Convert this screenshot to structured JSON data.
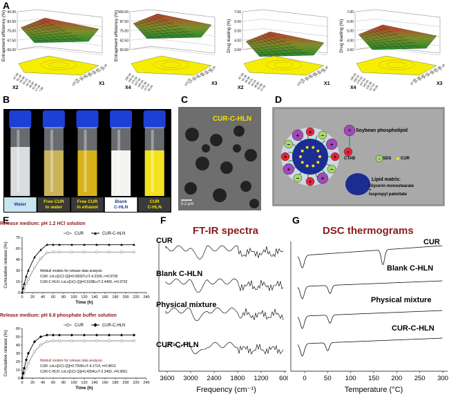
{
  "panels": {
    "A": {
      "letter": "A",
      "plots": [
        {
          "zlabel": "Entrapment efficiency (%)",
          "xlabel": "X1",
          "ylabel": "X2",
          "z_ticks": [
            "60.00",
            "67.50",
            "75.00",
            "82.50",
            "90.00"
          ],
          "x_ticks": [
            "129.76",
            "111.13",
            "93.50",
            "75.88",
            "58.25",
            "40.63",
            "32.14",
            "26.26"
          ],
          "y_ticks": [
            "67.06",
            "61.38",
            "55.69",
            "50.01",
            "44.33",
            "38.64",
            "32.96",
            "27.28",
            "21.60"
          ]
        },
        {
          "zlabel": "Entrapment efficiency (%)",
          "xlabel": "X3",
          "ylabel": "X4",
          "z_ticks": [
            "50.00",
            "62.50",
            "75.00",
            "87.50",
            "100.00"
          ],
          "x_ticks": [
            "129.76",
            "111.13",
            "93.50",
            "75.88",
            "58.25",
            "40.63",
            "26.26"
          ],
          "y_ticks": [
            "195.00",
            "182.51",
            "170.02",
            "157.54",
            "145.05",
            "132.56",
            "117.97",
            "105.00"
          ]
        },
        {
          "zlabel": "Drug loading (%)",
          "xlabel": "X1",
          "ylabel": "X2",
          "z_ticks": [
            "3.00",
            "4.00",
            "5.00",
            "6.00",
            "7.00"
          ],
          "x_ticks": [
            "129.76",
            "111.13",
            "93.50",
            "75.88",
            "58.25",
            "40.63",
            "26.26"
          ],
          "y_ticks": [
            "67.06",
            "61.38",
            "55.69",
            "50.01",
            "44.33",
            "38.64",
            "32.96",
            "27.28"
          ]
        },
        {
          "zlabel": "Drug loading (%)",
          "xlabel": "X3",
          "ylabel": "X4",
          "z_ticks": [
            "3.00",
            "4.00",
            "5.00",
            "6.00",
            "7.00"
          ],
          "x_ticks": [
            "67.06",
            "61.38",
            "55.69",
            "50.01",
            "44.33",
            "38.64",
            "32.96",
            "27.28"
          ],
          "y_ticks": [
            "195.00",
            "182.51",
            "170.02",
            "157.54",
            "145.05",
            "132.56",
            "117.97",
            "105.00"
          ]
        }
      ]
    },
    "B": {
      "letter": "B",
      "vials": [
        {
          "label": "Water",
          "liquid": "#d9dde0"
        },
        {
          "label": "Free CUR in water",
          "liquid": "#c9b35a"
        },
        {
          "label": "Free CUR in ethanol",
          "liquid": "#d9b21a"
        },
        {
          "label": "Blank C-HLN",
          "liquid": "#f4f4f2"
        },
        {
          "label": "CUR C-HLN",
          "liquid": "#f2e21e"
        }
      ]
    },
    "C": {
      "letter": "C",
      "title": "CUR-C-HLN",
      "scale": "0.2 μm"
    },
    "D": {
      "letter": "D",
      "legend": {
        "soybean": "Soybean phospholipid",
        "ctab": "CTAB",
        "sds": "SDS",
        "cur": "CUR",
        "matrix_title": "Lipid matrix:",
        "matrix_1": "Glycerin monostearate",
        "matrix_plus": "+",
        "matrix_2": "Isopropyl palmitate"
      }
    },
    "E": {
      "letter": "E",
      "top": {
        "title": "Release medium: pH 1.2 HCl solution",
        "legend_cur": "CUR",
        "legend_hln": "CUR-C-HLN",
        "ylabel": "Cumulative release (%)",
        "xlabel": "Time (h)",
        "model_title": "Weibull models for release data analysis:",
        "model_cur": "CUR: LnLn[1/(1-Q)]=0.08337LnT-4.2330, r=0.9739",
        "model_hln": "CUR-C-HLN: LnLn[1/(1-Q)]=0.5188LnT-2.4499, r=0.9732"
      },
      "bottom": {
        "title": "Release medium: pH 6.8 phosphate buffer solution",
        "legend_cur": "CUR",
        "legend_hln": "CUR-C-HLN",
        "ylabel": "Cumulative release (%)",
        "xlabel": "Time (h)",
        "model_title": "Weibull models for release data analysis:",
        "model_cur": "CUR: LnLn[1/(1-Q)]=0.7509LnT-4.1714, r=0.9813",
        "model_hln": "CUR-C-HLN: LnLn[1/(1-Q)]=0.4354LnT-2.3492, r=0.9661"
      }
    },
    "F": {
      "letter": "F",
      "title": "FT-IR spectra",
      "labels": [
        "CUR",
        "Blank C-HLN",
        "Physical mixture",
        "CUR-C-HLN"
      ],
      "xlabel": "Frequency (cm⁻¹)",
      "x_ticks": [
        "3600",
        "3000",
        "2400",
        "1800",
        "1200",
        "600"
      ]
    },
    "G": {
      "letter": "G",
      "title": "DSC thermograms",
      "labels": [
        "CUR",
        "Blank C-HLN",
        "Physical mixture",
        "CUR-C-HLN"
      ],
      "xlabel": "Temperature (°C)",
      "x_ticks": [
        "0",
        "50",
        "100",
        "150",
        "200",
        "250",
        "300"
      ]
    }
  },
  "chart_data": [
    {
      "type": "line",
      "title": "Release medium: pH 1.2 HCl solution",
      "xlabel": "Time (h)",
      "ylabel": "Cumulative release (%)",
      "xlim": [
        0,
        240
      ],
      "ylim": [
        0,
        75
      ],
      "x_ticks": [
        0,
        20,
        40,
        60,
        80,
        100,
        120,
        140,
        160,
        180,
        200,
        220,
        240
      ],
      "y_ticks": [
        0,
        15,
        30,
        45,
        60,
        75
      ],
      "series": [
        {
          "name": "CUR",
          "x": [
            0,
            2,
            4,
            8,
            12,
            24,
            36,
            48,
            60,
            72,
            96,
            120,
            144,
            168,
            192,
            216
          ],
          "y": [
            0,
            3,
            6,
            12,
            18,
            34,
            46,
            54,
            55,
            55,
            55,
            55,
            55,
            55,
            55,
            55
          ]
        },
        {
          "name": "CUR-C-HLN",
          "x": [
            0,
            2,
            4,
            8,
            12,
            24,
            36,
            48,
            60,
            72,
            96,
            120,
            144,
            168,
            192,
            216
          ],
          "y": [
            0,
            6,
            12,
            22,
            30,
            48,
            58,
            65,
            65,
            65,
            65,
            65,
            65,
            65,
            65,
            65
          ]
        }
      ]
    },
    {
      "type": "line",
      "title": "Release medium: pH 6.8 phosphate buffer solution",
      "xlabel": "Time (h)",
      "ylabel": "Cumulative release (%)",
      "xlim": [
        0,
        240
      ],
      "ylim": [
        0,
        60
      ],
      "x_ticks": [
        0,
        20,
        40,
        60,
        80,
        100,
        120,
        140,
        160,
        180,
        200,
        220,
        240
      ],
      "y_ticks": [
        0,
        10,
        20,
        30,
        40,
        50,
        60
      ],
      "series": [
        {
          "name": "CUR",
          "x": [
            0,
            2,
            4,
            8,
            12,
            24,
            36,
            48,
            60,
            72,
            96,
            120,
            144,
            168,
            192,
            216
          ],
          "y": [
            0,
            3,
            6,
            12,
            18,
            32,
            40,
            44,
            45,
            45,
            45,
            45,
            45,
            45,
            45,
            45
          ]
        },
        {
          "name": "CUR-C-HLN",
          "x": [
            0,
            2,
            4,
            8,
            12,
            24,
            36,
            48,
            60,
            72,
            96,
            120,
            144,
            168,
            192,
            216
          ],
          "y": [
            0,
            6,
            12,
            22,
            30,
            44,
            50,
            52,
            52,
            52,
            52,
            52,
            52,
            52,
            52,
            52
          ]
        }
      ]
    }
  ]
}
